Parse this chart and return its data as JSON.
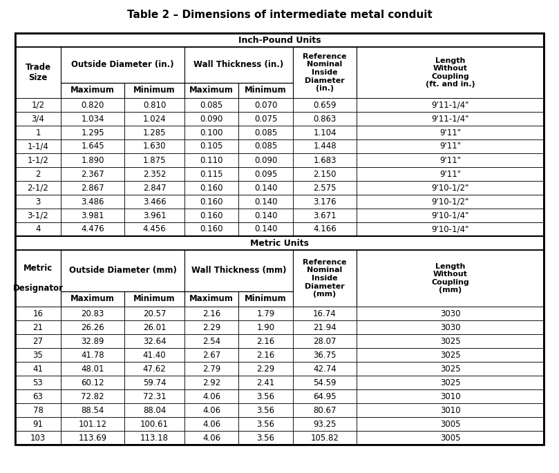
{
  "title": "Table 2 – Dimensions of intermediate metal conduit",
  "inch_section_label": "Inch-Pound Units",
  "metric_section_label": "Metric Units",
  "inch_data": [
    [
      "1/2",
      "0.820",
      "0.810",
      "0.085",
      "0.070",
      "0.659",
      "9'11-1/4\""
    ],
    [
      "3/4",
      "1.034",
      "1.024",
      "0.090",
      "0.075",
      "0.863",
      "9'11-1/4\""
    ],
    [
      "1",
      "1.295",
      "1.285",
      "0.100",
      "0.085",
      "1.104",
      "9'11\""
    ],
    [
      "1-1/4",
      "1.645",
      "1.630",
      "0.105",
      "0.085",
      "1.448",
      "9'11\""
    ],
    [
      "1-1/2",
      "1.890",
      "1.875",
      "0.110",
      "0.090",
      "1.683",
      "9'11\""
    ],
    [
      "2",
      "2.367",
      "2.352",
      "0.115",
      "0.095",
      "2.150",
      "9'11\""
    ],
    [
      "2-1/2",
      "2.867",
      "2.847",
      "0.160",
      "0.140",
      "2.575",
      "9'10-1/2\""
    ],
    [
      "3",
      "3.486",
      "3.466",
      "0.160",
      "0.140",
      "3.176",
      "9'10-1/2\""
    ],
    [
      "3-1/2",
      "3.981",
      "3.961",
      "0.160",
      "0.140",
      "3.671",
      "9'10-1/4\""
    ],
    [
      "4",
      "4.476",
      "4.456",
      "0.160",
      "0.140",
      "4.166",
      "9'10-1/4\""
    ]
  ],
  "metric_data": [
    [
      "16",
      "20.83",
      "20.57",
      "2.16",
      "1.79",
      "16.74",
      "3030"
    ],
    [
      "21",
      "26.26",
      "26.01",
      "2.29",
      "1.90",
      "21.94",
      "3030"
    ],
    [
      "27",
      "32.89",
      "32.64",
      "2.54",
      "2.16",
      "28.07",
      "3025"
    ],
    [
      "35",
      "41.78",
      "41.40",
      "2.67",
      "2.16",
      "36.75",
      "3025"
    ],
    [
      "41",
      "48.01",
      "47.62",
      "2.79",
      "2.29",
      "42.74",
      "3025"
    ],
    [
      "53",
      "60.12",
      "59.74",
      "2.92",
      "2.41",
      "54.59",
      "3025"
    ],
    [
      "63",
      "72.82",
      "72.31",
      "4.06",
      "3.56",
      "64.95",
      "3010"
    ],
    [
      "78",
      "88.54",
      "88.04",
      "4.06",
      "3.56",
      "80.67",
      "3010"
    ],
    [
      "91",
      "101.12",
      "100.61",
      "4.06",
      "3.56",
      "93.25",
      "3005"
    ],
    [
      "103",
      "113.69",
      "113.18",
      "4.06",
      "3.56",
      "105.82",
      "3005"
    ]
  ],
  "bg_color": "#ffffff",
  "title_fontsize": 11,
  "section_fontsize": 9,
  "header_fontsize": 8.5,
  "data_fontsize": 8.5
}
